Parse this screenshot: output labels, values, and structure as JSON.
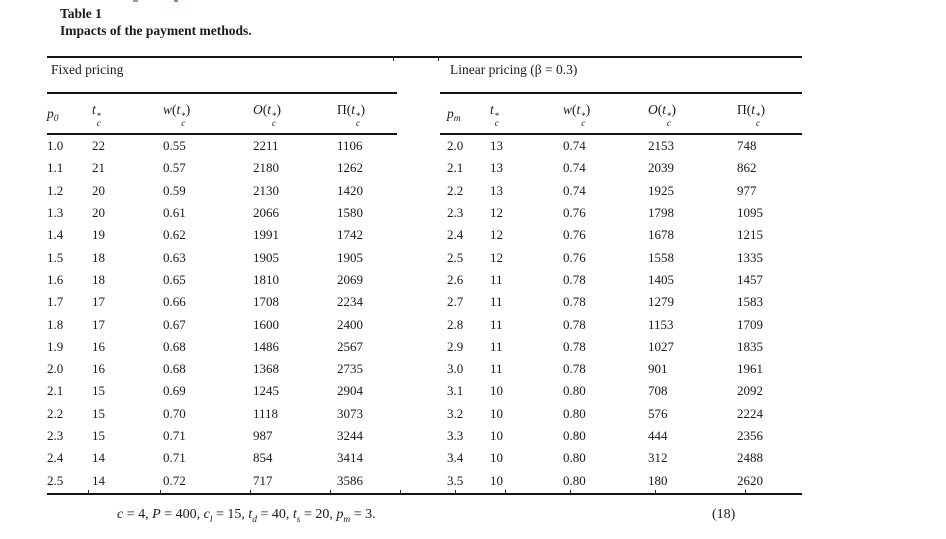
{
  "page": {
    "title_line1": "Table 1",
    "title_line2": "Impacts of the payment methods."
  },
  "table": {
    "left": {
      "group_label": "Fixed pricing",
      "columns": [
        {
          "pre_i": "",
          "pre_n": "",
          "base": "p",
          "sup": "",
          "sub": "0",
          "post": ""
        },
        {
          "pre_i": "",
          "pre_n": "",
          "base": "t",
          "sup": "*",
          "sub": "c",
          "post": ""
        },
        {
          "pre_i": "w",
          "pre_n": "(",
          "base": "t",
          "sup": "*",
          "sub": "c",
          "post": ")"
        },
        {
          "pre_i": "O",
          "pre_n": "(",
          "base": "t",
          "sup": "*",
          "sub": "c",
          "post": ")"
        },
        {
          "pre_i": "",
          "pre_n": "Π(",
          "base": "t",
          "sup": "*",
          "sub": "c",
          "post": ")"
        }
      ],
      "rows": [
        [
          "1.0",
          "22",
          "0.55",
          "2211",
          "1106"
        ],
        [
          "1.1",
          "21",
          "0.57",
          "2180",
          "1262"
        ],
        [
          "1.2",
          "20",
          "0.59",
          "2130",
          "1420"
        ],
        [
          "1.3",
          "20",
          "0.61",
          "2066",
          "1580"
        ],
        [
          "1.4",
          "19",
          "0.62",
          "1991",
          "1742"
        ],
        [
          "1.5",
          "18",
          "0.63",
          "1905",
          "1905"
        ],
        [
          "1.6",
          "18",
          "0.65",
          "1810",
          "2069"
        ],
        [
          "1.7",
          "17",
          "0.66",
          "1708",
          "2234"
        ],
        [
          "1.8",
          "17",
          "0.67",
          "1600",
          "2400"
        ],
        [
          "1.9",
          "16",
          "0.68",
          "1486",
          "2567"
        ],
        [
          "2.0",
          "16",
          "0.68",
          "1368",
          "2735"
        ],
        [
          "2.1",
          "15",
          "0.69",
          "1245",
          "2904"
        ],
        [
          "2.2",
          "15",
          "0.70",
          "1118",
          "3073"
        ],
        [
          "2.3",
          "15",
          "0.71",
          "987",
          "3244"
        ],
        [
          "2.4",
          "14",
          "0.71",
          "854",
          "3414"
        ],
        [
          "2.5",
          "14",
          "0.72",
          "717",
          "3586"
        ]
      ]
    },
    "right": {
      "group_label": "Linear pricing (β = 0.3)",
      "columns": [
        {
          "pre_i": "",
          "pre_n": "",
          "base": "p",
          "sup": "",
          "sub": "m",
          "post": ""
        },
        {
          "pre_i": "",
          "pre_n": "",
          "base": "t",
          "sup": "*",
          "sub": "c",
          "post": ""
        },
        {
          "pre_i": "w",
          "pre_n": "(",
          "base": "t",
          "sup": "*",
          "sub": "c",
          "post": ")"
        },
        {
          "pre_i": "O",
          "pre_n": "(",
          "base": "t",
          "sup": "*",
          "sub": "c",
          "post": ")"
        },
        {
          "pre_i": "",
          "pre_n": "Π(",
          "base": "t",
          "sup": "*",
          "sub": "c",
          "post": ")"
        }
      ],
      "rows": [
        [
          "2.0",
          "13",
          "0.74",
          "2153",
          "748"
        ],
        [
          "2.1",
          "13",
          "0.74",
          "2039",
          "862"
        ],
        [
          "2.2",
          "13",
          "0.74",
          "1925",
          "977"
        ],
        [
          "2.3",
          "12",
          "0.76",
          "1798",
          "1095"
        ],
        [
          "2.4",
          "12",
          "0.76",
          "1678",
          "1215"
        ],
        [
          "2.5",
          "12",
          "0.76",
          "1558",
          "1335"
        ],
        [
          "2.6",
          "11",
          "0.78",
          "1405",
          "1457"
        ],
        [
          "2.7",
          "11",
          "0.78",
          "1279",
          "1583"
        ],
        [
          "2.8",
          "11",
          "0.78",
          "1153",
          "1709"
        ],
        [
          "2.9",
          "11",
          "0.78",
          "1027",
          "1835"
        ],
        [
          "3.0",
          "11",
          "0.78",
          "901",
          "1961"
        ],
        [
          "3.1",
          "10",
          "0.80",
          "708",
          "2092"
        ],
        [
          "3.2",
          "10",
          "0.80",
          "576",
          "2224"
        ],
        [
          "3.3",
          "10",
          "0.80",
          "444",
          "2356"
        ],
        [
          "3.4",
          "10",
          "0.80",
          "312",
          "2488"
        ],
        [
          "3.5",
          "10",
          "0.80",
          "180",
          "2620"
        ]
      ]
    }
  },
  "footnote": {
    "segments": [
      {
        "v": "c",
        "s": "",
        "t": " = 4, "
      },
      {
        "v": "P",
        "s": "",
        "t": " = 400, "
      },
      {
        "v": "c",
        "s": "l",
        "t": " = 15, "
      },
      {
        "v": "t",
        "s": "d",
        "t": " = 40, "
      },
      {
        "v": "t",
        "s": "s",
        "t": " = 20, "
      },
      {
        "v": "p",
        "s": "m",
        "t": " = 3."
      }
    ],
    "eq_number": "(18)"
  }
}
